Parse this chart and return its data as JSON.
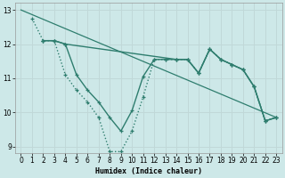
{
  "xlabel": "Humidex (Indice chaleur)",
  "xlim": [
    -0.5,
    23.5
  ],
  "ylim": [
    8.8,
    13.2
  ],
  "xticks": [
    0,
    1,
    2,
    3,
    4,
    5,
    6,
    7,
    8,
    9,
    10,
    11,
    12,
    13,
    14,
    15,
    16,
    17,
    18,
    19,
    20,
    21,
    22,
    23
  ],
  "yticks": [
    9,
    10,
    11,
    12,
    13
  ],
  "background_color": "#cde8e8",
  "grid_color": "#c0d8d8",
  "line_color": "#2e7d6e",
  "line1": {
    "x": [
      0,
      23
    ],
    "y": [
      13.0,
      9.85
    ]
  },
  "line2": {
    "x": [
      1,
      2,
      3,
      4,
      5,
      6,
      7,
      8,
      9,
      10,
      11,
      12,
      13,
      14,
      15,
      16,
      17,
      18,
      19,
      20,
      21,
      22,
      23
    ],
    "y": [
      12.75,
      12.1,
      12.1,
      11.1,
      10.65,
      10.3,
      9.85,
      8.85,
      8.85,
      9.45,
      10.45,
      11.55,
      11.55,
      11.55,
      11.55,
      11.15,
      11.85,
      11.55,
      11.4,
      11.25,
      10.75,
      9.75,
      9.85
    ]
  },
  "line3": {
    "x": [
      2,
      3,
      4,
      5,
      6,
      7,
      8,
      9,
      10,
      11,
      12,
      13,
      14,
      15,
      16,
      17,
      18,
      19,
      20,
      21,
      22,
      23
    ],
    "y": [
      12.1,
      12.1,
      12.0,
      11.1,
      10.65,
      10.3,
      9.85,
      9.45,
      10.05,
      11.05,
      11.55,
      11.55,
      11.55,
      11.55,
      11.15,
      11.85,
      11.55,
      11.4,
      11.25,
      10.75,
      9.75,
      9.85
    ]
  },
  "line4": {
    "x": [
      2,
      3,
      4,
      14,
      15,
      16,
      17,
      18,
      19,
      20,
      21,
      22,
      23
    ],
    "y": [
      12.1,
      12.1,
      12.0,
      11.55,
      11.55,
      11.15,
      11.85,
      11.55,
      11.4,
      11.25,
      10.75,
      9.75,
      9.85
    ]
  }
}
